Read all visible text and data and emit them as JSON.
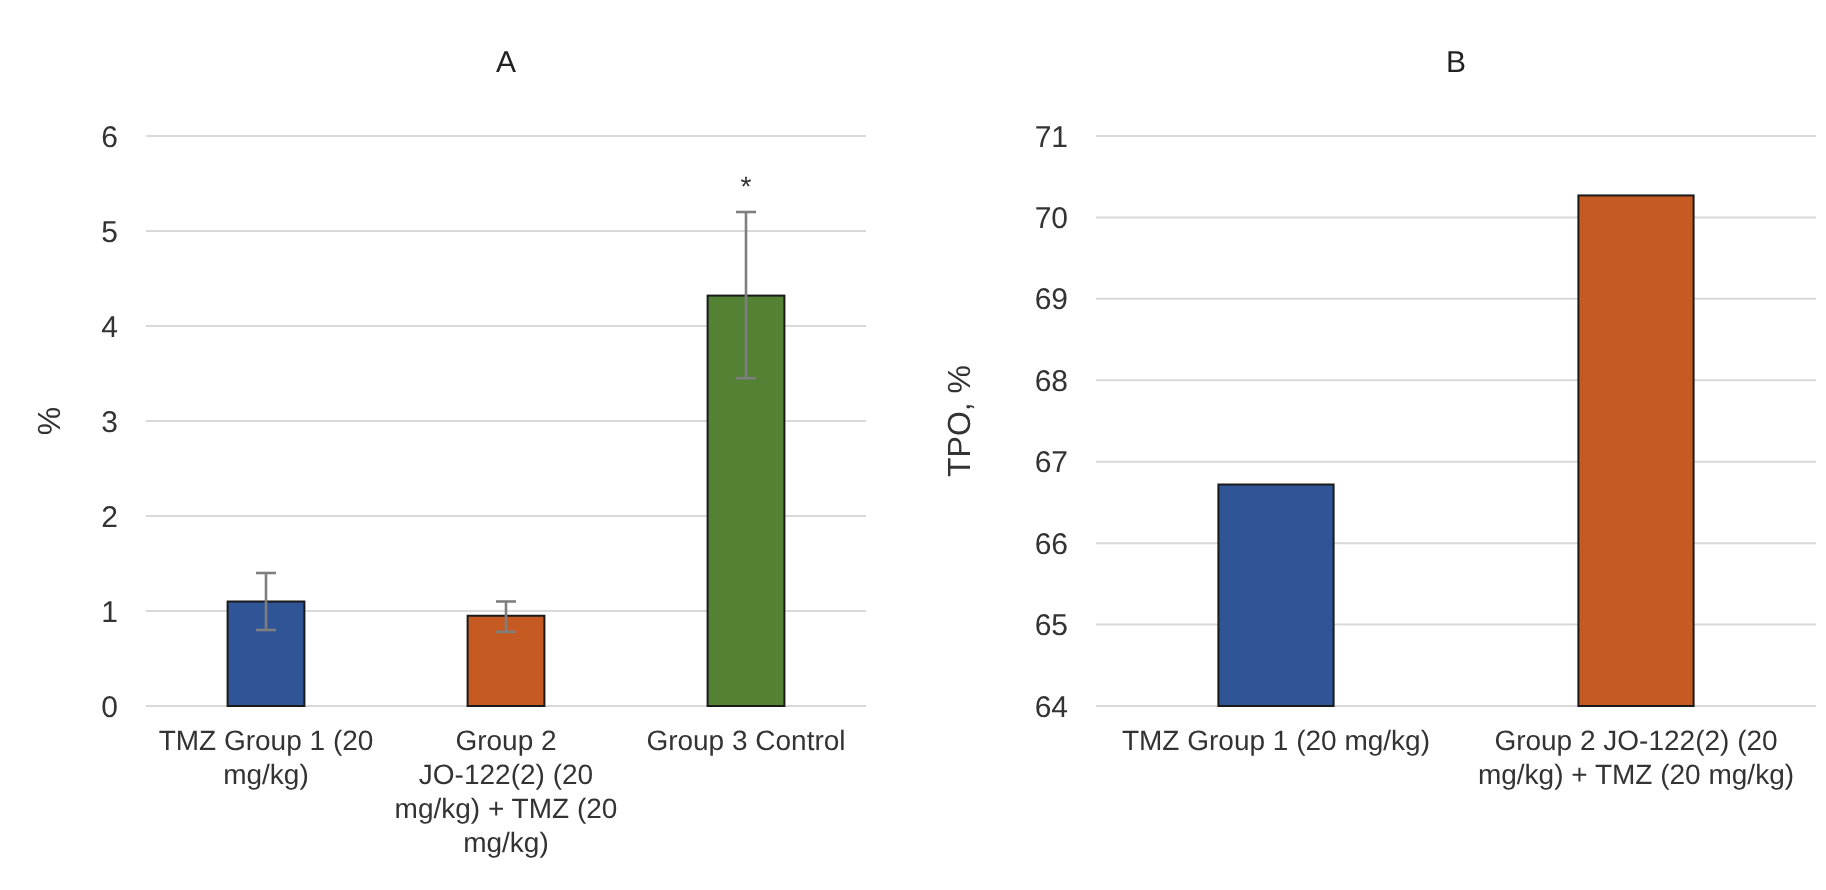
{
  "chart_data": [
    {
      "type": "bar",
      "title": "A",
      "ylabel": "%",
      "categories": [
        "TMZ Group 1 (20 mg/kg)",
        "Group 2 JO-122(2) (20 mg/kg) + TMZ (20 mg/kg)",
        "Group 3 Control"
      ],
      "values": [
        1.1,
        0.95,
        4.32
      ],
      "colors": [
        "#2f5597",
        "#c55a22",
        "#548235"
      ],
      "errors": [
        [
          0.8,
          1.4
        ],
        [
          0.78,
          1.1
        ],
        [
          3.45,
          5.2
        ]
      ],
      "ylim": [
        0,
        6
      ],
      "yticks": [
        0,
        1,
        2,
        3,
        4,
        5,
        6
      ],
      "grid": "y",
      "annotations": [
        {
          "text": "*",
          "x": "Group 3 Control",
          "y": 5.2
        }
      ]
    },
    {
      "type": "bar",
      "title": "B",
      "ylabel": "TPO, %",
      "categories": [
        "TMZ Group 1 (20 mg/kg)",
        "Group 2 JO-122(2) (20 mg/kg) + TMZ (20 mg/kg)"
      ],
      "values": [
        66.72,
        70.27
      ],
      "colors": [
        "#2f5597",
        "#c55a22"
      ],
      "ylim": [
        64,
        71
      ],
      "yticks": [
        64,
        65,
        66,
        67,
        68,
        69,
        70,
        71
      ],
      "grid": "y"
    }
  ]
}
